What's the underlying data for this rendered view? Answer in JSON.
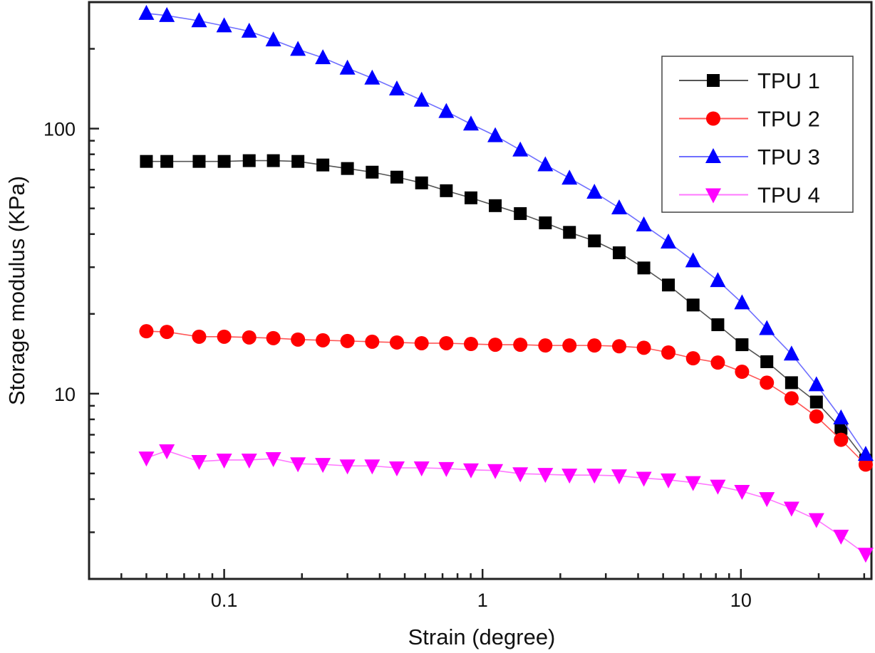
{
  "chart_data": {
    "type": "line",
    "title": "",
    "xlabel": "Strain (degree)",
    "ylabel": "Storage modulus (KPa)",
    "xscale": "log",
    "yscale": "log",
    "xlim": [
      0.03,
      32
    ],
    "ylim": [
      2,
      300
    ],
    "x_ticks": [
      {
        "value": 0.1,
        "label": "0.1"
      },
      {
        "value": 1,
        "label": "1"
      },
      {
        "value": 10,
        "label": "10"
      }
    ],
    "y_ticks": [
      {
        "value": 10,
        "label": "10"
      },
      {
        "value": 100,
        "label": "100"
      }
    ],
    "grid": false,
    "legend_position": "top-right",
    "x": [
      0.05,
      0.06,
      0.08,
      0.1,
      0.125,
      0.155,
      0.193,
      0.241,
      0.3,
      0.374,
      0.466,
      0.581,
      0.724,
      0.902,
      1.12,
      1.4,
      1.75,
      2.17,
      2.71,
      3.38,
      4.21,
      5.24,
      6.53,
      8.14,
      10.1,
      12.6,
      15.7,
      19.6,
      24.4,
      30.4
    ],
    "series": [
      {
        "name": "TPU 1",
        "color": "#000000",
        "line_color": "#555555",
        "marker": "square",
        "values": [
          75.2,
          75.2,
          75.2,
          75.2,
          75.7,
          75.7,
          75.2,
          72.9,
          70.7,
          68.5,
          65.6,
          62.4,
          58.3,
          54.8,
          51.2,
          47.8,
          44.1,
          40.6,
          37.7,
          34.0,
          29.8,
          25.7,
          21.6,
          18.2,
          15.3,
          13.2,
          11.0,
          9.3,
          7.4,
          5.6
        ]
      },
      {
        "name": "TPU 2",
        "color": "#ff0000",
        "line_color": "#ff5555",
        "marker": "circle",
        "values": [
          17.2,
          17.1,
          16.4,
          16.4,
          16.3,
          16.2,
          16.0,
          15.9,
          15.8,
          15.7,
          15.6,
          15.5,
          15.5,
          15.4,
          15.3,
          15.3,
          15.2,
          15.2,
          15.2,
          15.1,
          14.9,
          14.3,
          13.6,
          13.1,
          12.1,
          11.0,
          9.6,
          8.2,
          6.7,
          5.4
        ]
      },
      {
        "name": "TPU 3",
        "color": "#0000ff",
        "line_color": "#6f6fff",
        "marker": "triangle-up",
        "values": [
          272,
          267,
          255,
          244,
          233,
          216,
          199,
          185,
          169,
          155,
          141,
          128,
          116,
          104,
          94,
          83,
          73,
          65,
          57.5,
          50.2,
          43.3,
          37.3,
          31.7,
          26.7,
          22.0,
          17.6,
          14.1,
          10.8,
          8.1,
          5.9
        ]
      },
      {
        "name": "TPU 4",
        "color": "#ff00ff",
        "line_color": "#ff77ff",
        "marker": "triangle-down",
        "values": [
          5.72,
          6.09,
          5.55,
          5.62,
          5.62,
          5.69,
          5.44,
          5.41,
          5.34,
          5.34,
          5.25,
          5.25,
          5.22,
          5.16,
          5.13,
          4.99,
          4.96,
          4.93,
          4.93,
          4.9,
          4.8,
          4.73,
          4.62,
          4.48,
          4.28,
          4.02,
          3.7,
          3.35,
          2.9,
          2.48
        ]
      }
    ]
  }
}
